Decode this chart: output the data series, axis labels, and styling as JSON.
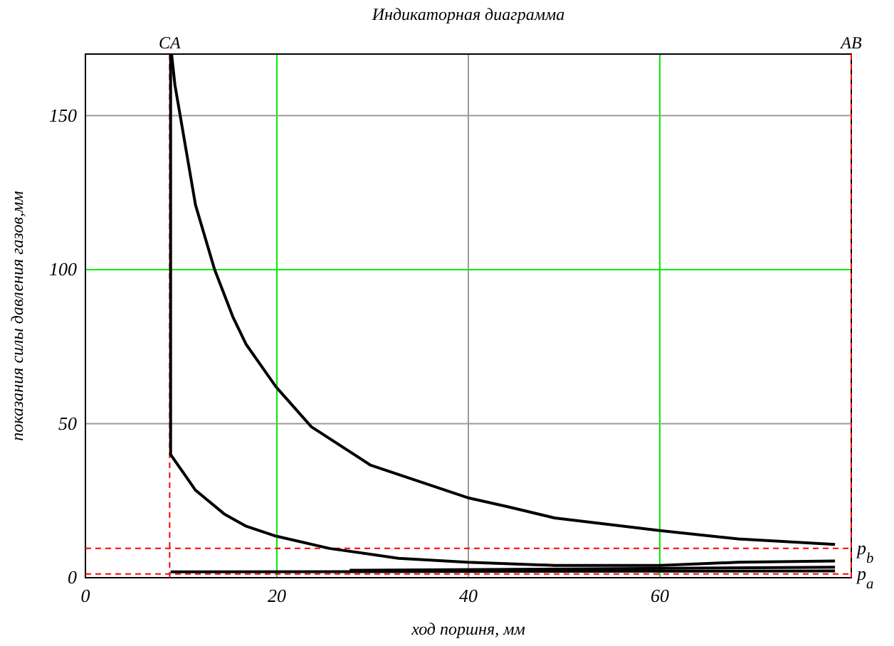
{
  "chart_data": {
    "type": "line",
    "title": "Индикаторная диаграмма",
    "xlabel": "ход поршня, мм",
    "ylabel": "показания силы давления газов,мм",
    "xlim": [
      0,
      80
    ],
    "ylim": [
      0,
      170
    ],
    "xticks": [
      0,
      20,
      40,
      60
    ],
    "yticks": [
      0,
      50,
      100,
      150
    ],
    "grid": true,
    "marker": "none",
    "line_style": "solid",
    "series": [
      {
        "color": "#000000",
        "x": [
          9.0,
          9.35,
          11.5,
          13.5,
          15.4,
          16.8,
          19.9,
          23.6,
          29.8,
          39.9,
          44.2,
          49,
          60,
          68.2,
          78.3
        ],
        "values": [
          170,
          160,
          121,
          100,
          84.7,
          75.7,
          62,
          49,
          36.5,
          26,
          23,
          19.4,
          15.3,
          12.6,
          10.8
        ]
      },
      {
        "color": "#000000",
        "x": [
          8.9,
          8.9,
          11.5,
          14.5,
          16.8,
          19.9,
          25.5,
          32.7,
          39.9,
          49,
          60,
          68.2,
          78.3
        ],
        "values": [
          170,
          40,
          28.4,
          20.7,
          16.7,
          13.5,
          9.5,
          6.3,
          5,
          4,
          4,
          5,
          5.4
        ]
      },
      {
        "color": "#000000",
        "x": [
          8.9,
          78.3
        ],
        "values": [
          1.9,
          2.2
        ]
      },
      {
        "color": "#000000",
        "x": [
          27.6,
          78.3
        ],
        "values": [
          2.4,
          3.4
        ]
      }
    ],
    "ref_lines": [
      {
        "axis": "x",
        "value": 8.8,
        "label": "CA",
        "color": "#ff0000",
        "line_style": "dashed"
      },
      {
        "axis": "x",
        "value": 80,
        "label": "AB",
        "color": "#ff0000",
        "line_style": "dashed"
      },
      {
        "axis": "y",
        "value": 9.5,
        "label": "p$_{b}$",
        "color": "#ff0000",
        "line_style": "dashed"
      },
      {
        "axis": "y",
        "value": 1.2,
        "label": "p$_{a}$",
        "color": "#ff0000",
        "line_style": "dashed"
      }
    ]
  }
}
